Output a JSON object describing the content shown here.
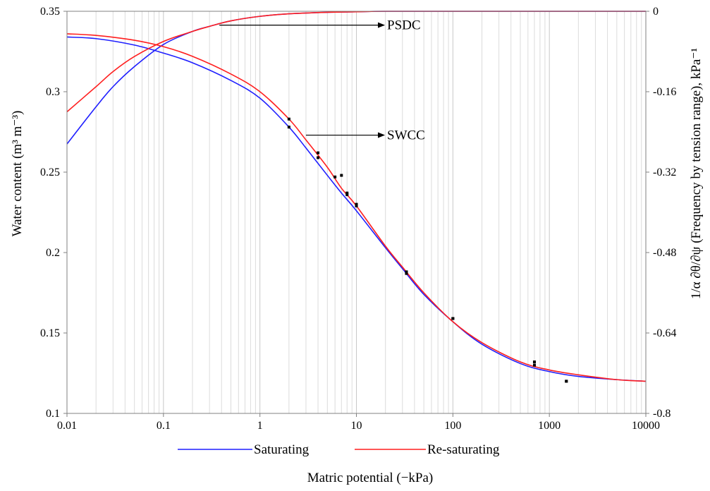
{
  "chart_data": {
    "type": "line",
    "xscale": "log",
    "xlim": [
      0.01,
      10000
    ],
    "ylim_left": [
      0.1,
      0.35
    ],
    "ylim_right": [
      -0.8,
      0
    ],
    "grid": {
      "x_major": true,
      "x_minor": true,
      "y": false
    },
    "legend_position": "bottom",
    "xlabel": "Matric potential (−kPa)",
    "ylabel_left": "Water content (m³ m⁻³)",
    "ylabel_right": "1/α ∂θ/∂ψ (Frequency by tension range), kPa⁻¹",
    "x_ticks": [
      "0.01",
      "0.1",
      "1",
      "10",
      "100",
      "1000",
      "10000"
    ],
    "y_left_ticks": [
      "0.1",
      "0.15",
      "0.2",
      "0.25",
      "0.3",
      "0.35"
    ],
    "y_right_ticks": [
      "-0.8",
      "-0.64",
      "-0.48",
      "-0.32",
      "-0.16",
      "0"
    ],
    "annotations": [
      {
        "text": "PSDC",
        "points_to_x": 0.38,
        "points_to_y": -0.0275
      },
      {
        "text": "SWCC",
        "points_to_x": 3,
        "points_to_y": 0.273
      }
    ],
    "series": [
      {
        "name": "Saturating",
        "color": "#1f1fff",
        "swcc": {
          "x": [
            0.01,
            0.02,
            0.05,
            0.1,
            0.2,
            0.5,
            1,
            2,
            3,
            5,
            7,
            10,
            20,
            30,
            50,
            100,
            200,
            500,
            1000,
            2000,
            5000,
            10000
          ],
          "y": [
            0.334,
            0.333,
            0.329,
            0.324,
            0.318,
            0.307,
            0.296,
            0.278,
            0.265,
            0.248,
            0.237,
            0.226,
            0.203,
            0.19,
            0.174,
            0.157,
            0.143,
            0.131,
            0.126,
            0.123,
            0.121,
            0.12
          ]
        },
        "psdc": {
          "x": [
            0.01,
            0.02,
            0.03,
            0.05,
            0.1,
            0.2,
            0.3,
            0.5,
            1,
            2,
            5,
            10,
            20,
            100,
            1000,
            10000
          ],
          "y": [
            -0.264,
            -0.19,
            -0.15,
            -0.11,
            -0.066,
            -0.04,
            -0.03,
            -0.019,
            -0.01,
            -0.005,
            -0.002,
            -0.001,
            0,
            0,
            0,
            0
          ]
        },
        "measured": {
          "x": [
            2,
            4,
            6,
            8,
            10,
            33,
            100,
            700,
            1500
          ],
          "y": [
            0.278,
            0.259,
            0.247,
            0.236,
            0.229,
            0.187,
            0.159,
            0.13,
            0.12
          ]
        }
      },
      {
        "name": "Re-saturating",
        "color": "#ff1f1f",
        "swcc": {
          "x": [
            0.01,
            0.02,
            0.05,
            0.1,
            0.2,
            0.5,
            1,
            2,
            3,
            5,
            7,
            10,
            20,
            30,
            50,
            100,
            200,
            500,
            1000,
            2000,
            5000,
            10000
          ],
          "y": [
            0.336,
            0.335,
            0.332,
            0.328,
            0.322,
            0.311,
            0.3,
            0.283,
            0.27,
            0.253,
            0.24,
            0.229,
            0.204,
            0.191,
            0.175,
            0.157,
            0.144,
            0.132,
            0.127,
            0.124,
            0.121,
            0.12
          ]
        },
        "psdc": {
          "x": [
            0.01,
            0.02,
            0.03,
            0.05,
            0.1,
            0.2,
            0.3,
            0.5,
            1,
            2,
            5,
            10,
            20,
            100,
            1000,
            10000
          ],
          "y": [
            -0.2,
            -0.15,
            -0.12,
            -0.09,
            -0.06,
            -0.04,
            -0.03,
            -0.019,
            -0.01,
            -0.005,
            -0.002,
            -0.001,
            0,
            0,
            0,
            0
          ]
        },
        "measured": {
          "x": [
            2,
            4,
            7,
            8,
            10,
            33,
            100,
            700,
            1500
          ],
          "y": [
            0.283,
            0.262,
            0.248,
            0.237,
            0.23,
            0.188,
            0.159,
            0.132,
            0.12
          ]
        }
      }
    ]
  }
}
